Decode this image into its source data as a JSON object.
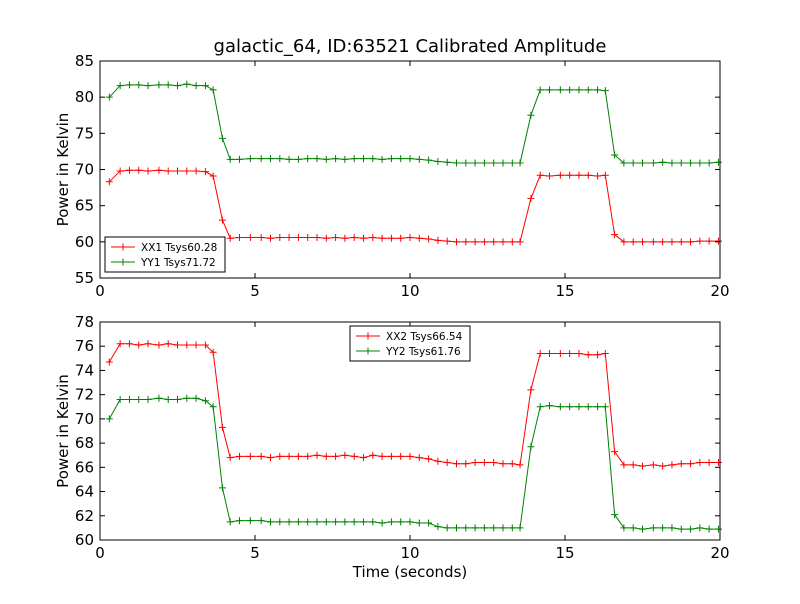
{
  "figure": {
    "title": "galactic_64, ID:63521 Calibrated Amplitude"
  },
  "chart_data": [
    {
      "type": "line",
      "title": "galactic_64, ID:63521 Calibrated Amplitude",
      "xlabel": "",
      "ylabel": "Power in Kelvin",
      "xlim": [
        0,
        20
      ],
      "ylim": [
        55,
        85
      ],
      "x_ticks": [
        0,
        5,
        10,
        15,
        20
      ],
      "y_ticks": [
        55,
        60,
        65,
        70,
        75,
        80,
        85
      ],
      "legend_position": "lower-left",
      "grid": false,
      "x": [
        0.3,
        0.65,
        0.95,
        1.25,
        1.55,
        1.9,
        2.2,
        2.5,
        2.8,
        3.1,
        3.4,
        3.65,
        3.95,
        4.2,
        4.5,
        4.85,
        5.2,
        5.5,
        5.8,
        6.1,
        6.4,
        6.7,
        7.0,
        7.3,
        7.6,
        7.9,
        8.2,
        8.5,
        8.8,
        9.1,
        9.4,
        9.7,
        10.0,
        10.3,
        10.6,
        10.9,
        11.2,
        11.5,
        11.8,
        12.1,
        12.4,
        12.7,
        13.0,
        13.3,
        13.55,
        13.9,
        14.2,
        14.5,
        14.85,
        15.15,
        15.45,
        15.75,
        16.05,
        16.3,
        16.6,
        16.9,
        17.2,
        17.5,
        17.85,
        18.15,
        18.45,
        18.75,
        19.05,
        19.35,
        19.65,
        19.95
      ],
      "series": [
        {
          "name": "XX1 Tsys60.28",
          "color": "#ff0000",
          "values": [
            68.3,
            69.8,
            69.9,
            69.9,
            69.8,
            69.9,
            69.8,
            69.8,
            69.8,
            69.8,
            69.7,
            69.1,
            63.0,
            60.5,
            60.6,
            60.6,
            60.6,
            60.5,
            60.6,
            60.6,
            60.6,
            60.6,
            60.6,
            60.5,
            60.6,
            60.5,
            60.6,
            60.5,
            60.6,
            60.5,
            60.5,
            60.5,
            60.6,
            60.5,
            60.4,
            60.2,
            60.1,
            60.0,
            60.0,
            60.0,
            60.0,
            60.0,
            60.0,
            60.0,
            60.0,
            66.0,
            69.2,
            69.1,
            69.2,
            69.2,
            69.2,
            69.2,
            69.1,
            69.2,
            61.0,
            60.0,
            60.0,
            60.0,
            60.0,
            60.0,
            60.0,
            60.0,
            60.0,
            60.1,
            60.1,
            60.1
          ]
        },
        {
          "name": "YY1 Tsys71.72",
          "color": "#008000",
          "values": [
            80.0,
            81.6,
            81.7,
            81.7,
            81.6,
            81.7,
            81.7,
            81.6,
            81.8,
            81.6,
            81.6,
            81.0,
            74.3,
            71.4,
            71.4,
            71.5,
            71.5,
            71.5,
            71.5,
            71.4,
            71.4,
            71.5,
            71.5,
            71.4,
            71.5,
            71.4,
            71.5,
            71.5,
            71.5,
            71.4,
            71.5,
            71.5,
            71.5,
            71.4,
            71.3,
            71.1,
            71.0,
            70.9,
            70.9,
            70.9,
            70.9,
            70.9,
            70.9,
            70.9,
            70.9,
            77.5,
            81.0,
            81.0,
            81.0,
            81.0,
            81.0,
            81.0,
            81.0,
            80.9,
            72.0,
            70.9,
            70.9,
            70.9,
            70.9,
            71.0,
            70.9,
            70.9,
            70.9,
            70.9,
            70.9,
            71.0
          ]
        }
      ]
    },
    {
      "type": "line",
      "title": "",
      "xlabel": "Time (seconds)",
      "ylabel": "Power in Kelvin",
      "xlim": [
        0,
        20
      ],
      "ylim": [
        60,
        78
      ],
      "x_ticks": [
        0,
        5,
        10,
        15,
        20
      ],
      "y_ticks": [
        60,
        62,
        64,
        66,
        68,
        70,
        72,
        74,
        76,
        78
      ],
      "legend_position": "top-center",
      "grid": false,
      "x": [
        0.3,
        0.65,
        0.95,
        1.25,
        1.55,
        1.9,
        2.2,
        2.5,
        2.8,
        3.1,
        3.4,
        3.65,
        3.95,
        4.2,
        4.5,
        4.85,
        5.2,
        5.5,
        5.8,
        6.1,
        6.4,
        6.7,
        7.0,
        7.3,
        7.6,
        7.9,
        8.2,
        8.5,
        8.8,
        9.1,
        9.4,
        9.7,
        10.0,
        10.3,
        10.6,
        10.9,
        11.2,
        11.5,
        11.8,
        12.1,
        12.4,
        12.7,
        13.0,
        13.3,
        13.55,
        13.9,
        14.2,
        14.5,
        14.85,
        15.15,
        15.45,
        15.75,
        16.05,
        16.3,
        16.6,
        16.9,
        17.2,
        17.5,
        17.85,
        18.15,
        18.45,
        18.75,
        19.05,
        19.35,
        19.65,
        19.95
      ],
      "series": [
        {
          "name": "XX2 Tsys66.54",
          "color": "#ff0000",
          "values": [
            74.7,
            76.2,
            76.2,
            76.1,
            76.2,
            76.1,
            76.2,
            76.1,
            76.1,
            76.1,
            76.1,
            75.5,
            69.3,
            66.8,
            66.9,
            66.9,
            66.9,
            66.8,
            66.9,
            66.9,
            66.9,
            66.9,
            67.0,
            66.9,
            66.9,
            67.0,
            66.9,
            66.8,
            67.0,
            66.9,
            66.9,
            66.9,
            66.9,
            66.8,
            66.7,
            66.5,
            66.4,
            66.3,
            66.3,
            66.4,
            66.4,
            66.4,
            66.3,
            66.3,
            66.2,
            72.4,
            75.4,
            75.4,
            75.4,
            75.4,
            75.4,
            75.3,
            75.3,
            75.4,
            67.3,
            66.2,
            66.2,
            66.1,
            66.2,
            66.1,
            66.2,
            66.3,
            66.3,
            66.4,
            66.4,
            66.4
          ]
        },
        {
          "name": "YY2 Tsys61.76",
          "color": "#008000",
          "values": [
            70.0,
            71.6,
            71.6,
            71.6,
            71.6,
            71.7,
            71.6,
            71.6,
            71.7,
            71.7,
            71.5,
            71.0,
            64.3,
            61.5,
            61.6,
            61.6,
            61.6,
            61.5,
            61.5,
            61.5,
            61.5,
            61.5,
            61.5,
            61.5,
            61.5,
            61.5,
            61.5,
            61.5,
            61.5,
            61.4,
            61.5,
            61.5,
            61.5,
            61.4,
            61.4,
            61.1,
            61.0,
            61.0,
            61.0,
            61.0,
            61.0,
            61.0,
            61.0,
            61.0,
            61.0,
            67.7,
            71.0,
            71.1,
            71.0,
            71.0,
            71.0,
            71.0,
            71.0,
            71.0,
            62.1,
            61.0,
            61.0,
            60.9,
            61.0,
            61.0,
            61.0,
            60.9,
            60.9,
            61.0,
            60.9,
            60.9
          ]
        }
      ]
    }
  ]
}
